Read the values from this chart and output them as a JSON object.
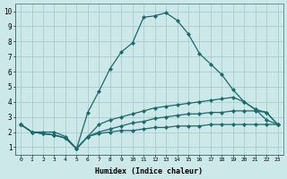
{
  "xlabel": "Humidex (Indice chaleur)",
  "background_color": "#cce8e8",
  "grid_color": "#aacccc",
  "line_color": "#1a6b6b",
  "xlim": [
    -0.5,
    23.5
  ],
  "ylim": [
    0.5,
    10.5
  ],
  "xticks": [
    0,
    1,
    2,
    3,
    4,
    5,
    6,
    7,
    8,
    9,
    10,
    11,
    12,
    13,
    14,
    15,
    16,
    17,
    18,
    19,
    20,
    21,
    22,
    23
  ],
  "yticks": [
    1,
    2,
    3,
    4,
    5,
    6,
    7,
    8,
    9,
    10
  ],
  "lines": [
    {
      "x": [
        0,
        1,
        2,
        3,
        4,
        5,
        6,
        7,
        8,
        9,
        10,
        11,
        12,
        13,
        14,
        15,
        16,
        17,
        18,
        19,
        20,
        21,
        22,
        23
      ],
      "y": [
        2.5,
        2.0,
        2.0,
        2.0,
        1.7,
        0.9,
        3.3,
        4.7,
        6.2,
        7.3,
        7.9,
        9.6,
        9.7,
        9.9,
        9.4,
        8.5,
        7.2,
        6.5,
        5.8,
        4.8,
        4.0,
        3.5,
        2.8,
        2.5
      ]
    },
    {
      "x": [
        0,
        1,
        2,
        3,
        4,
        5,
        6,
        7,
        8,
        9,
        10,
        11,
        12,
        13,
        14,
        15,
        16,
        17,
        18,
        19,
        20,
        21,
        22,
        23
      ],
      "y": [
        2.5,
        2.0,
        1.9,
        1.8,
        1.6,
        0.9,
        1.7,
        2.5,
        2.8,
        3.0,
        3.2,
        3.4,
        3.6,
        3.7,
        3.8,
        3.9,
        4.0,
        4.1,
        4.2,
        4.3,
        4.0,
        3.5,
        3.3,
        2.5
      ]
    },
    {
      "x": [
        0,
        1,
        2,
        3,
        4,
        5,
        6,
        7,
        8,
        9,
        10,
        11,
        12,
        13,
        14,
        15,
        16,
        17,
        18,
        19,
        20,
        21,
        22,
        23
      ],
      "y": [
        2.5,
        2.0,
        1.9,
        1.8,
        1.6,
        0.9,
        1.7,
        2.0,
        2.2,
        2.4,
        2.6,
        2.7,
        2.9,
        3.0,
        3.1,
        3.2,
        3.2,
        3.3,
        3.3,
        3.4,
        3.4,
        3.4,
        3.3,
        2.5
      ]
    },
    {
      "x": [
        0,
        1,
        2,
        3,
        4,
        5,
        6,
        7,
        8,
        9,
        10,
        11,
        12,
        13,
        14,
        15,
        16,
        17,
        18,
        19,
        20,
        21,
        22,
        23
      ],
      "y": [
        2.5,
        2.0,
        1.9,
        1.8,
        1.6,
        0.9,
        1.7,
        1.9,
        2.0,
        2.1,
        2.1,
        2.2,
        2.3,
        2.3,
        2.4,
        2.4,
        2.4,
        2.5,
        2.5,
        2.5,
        2.5,
        2.5,
        2.5,
        2.5
      ]
    }
  ],
  "marker": "D",
  "markersize": 2.0,
  "linewidth": 0.9
}
